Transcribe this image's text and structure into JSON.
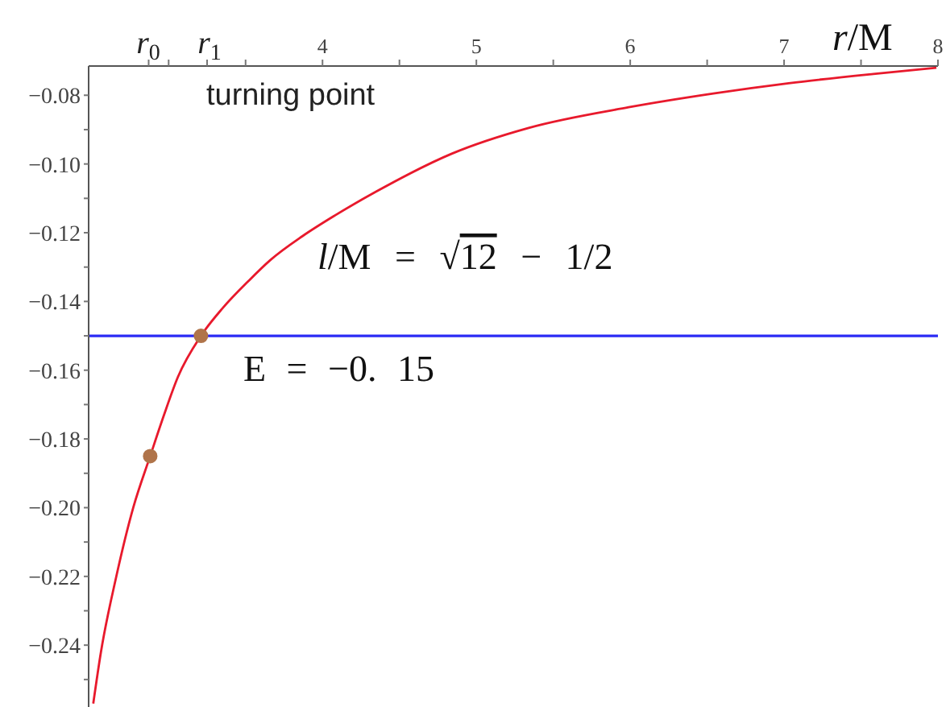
{
  "chart_data": {
    "type": "line",
    "xlabel": "r/M",
    "annotations": [
      "turning point",
      "l/M = √12 − 1/2",
      "r$_{0}$",
      "r$_{1}$"
    ],
    "xlim": [
      2.48,
      8
    ],
    "ylim": [
      -0.258,
      -0.0715
    ],
    "xticks": [
      {
        "value": 2.87,
        "label": null
      },
      {
        "value": 3,
        "label": null
      },
      {
        "value": 3.25,
        "label": null
      },
      {
        "value": 3.5,
        "label": null
      },
      4,
      {
        "value": 4.5,
        "label": null
      },
      5,
      {
        "value": 5.5,
        "label": null
      },
      6,
      {
        "value": 6.5,
        "label": null
      },
      7,
      {
        "value": 7.5,
        "label": null
      },
      8
    ],
    "yticks": [
      {
        "value": -0.08,
        "label": "−0.08"
      },
      {
        "value": -0.09,
        "label": null
      },
      {
        "value": -0.1,
        "label": "−0.10"
      },
      {
        "value": -0.11,
        "label": null
      },
      {
        "value": -0.12,
        "label": "−0.12"
      },
      {
        "value": -0.13,
        "label": null
      },
      {
        "value": -0.14,
        "label": "−0.14"
      },
      {
        "value": -0.15,
        "label": null
      },
      {
        "value": -0.16,
        "label": "−0.16"
      },
      {
        "value": -0.17,
        "label": null
      },
      {
        "value": -0.18,
        "label": "−0.18"
      },
      {
        "value": -0.19,
        "label": null
      },
      {
        "value": -0.2,
        "label": "−0.20"
      },
      {
        "value": -0.21,
        "label": null
      },
      {
        "value": -0.22,
        "label": "−0.22"
      },
      {
        "value": -0.23,
        "label": null
      },
      {
        "value": -0.24,
        "label": "−0.24"
      },
      {
        "value": -0.25,
        "label": null
      }
    ],
    "series": [
      {
        "color": "#e8192c",
        "x": [
          2.51,
          2.56,
          2.66,
          2.77,
          2.88,
          2.97,
          3.06,
          3.21,
          3.35,
          3.52,
          3.66,
          3.87,
          4.08,
          4.35,
          4.84,
          5.34,
          5.99,
          6.54,
          7.03,
          7.58,
          7.99
        ],
        "values": [
          -0.257,
          -0.242,
          -0.22,
          -0.2,
          -0.185,
          -0.173,
          -0.162,
          -0.15,
          -0.142,
          -0.134,
          -0.128,
          -0.121,
          -0.115,
          -0.108,
          -0.097,
          -0.0895,
          -0.0835,
          -0.0795,
          -0.0765,
          -0.0738,
          -0.072
        ]
      },
      {
        "type": "scatter",
        "color": "#b0744a",
        "marker": "circle",
        "x": [
          2.88,
          3.21
        ],
        "values": [
          -0.185,
          -0.15
        ]
      }
    ],
    "ref_lines": [
      {
        "axis": "y",
        "value": -0.15,
        "label": "E = −0. 15",
        "color": "#2b2bf5"
      }
    ]
  }
}
